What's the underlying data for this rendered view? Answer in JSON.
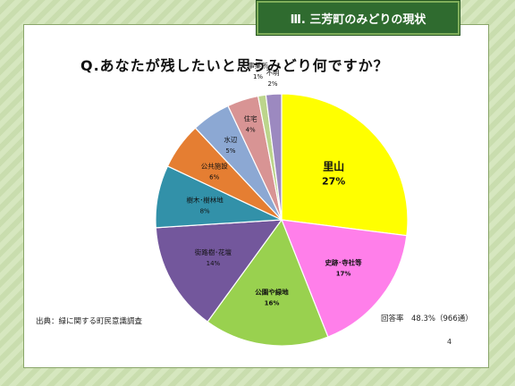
{
  "slide": {
    "section_title": "Ⅲ. 三芳町のみどりの現状",
    "source_note": "出典：緑に関する町民意識調査",
    "response_rate": "回答率　48.3%（966通）",
    "page_number": "4"
  },
  "chart_data": {
    "type": "pie",
    "title": "Q.あなたが残したいと思うみどり何ですか？",
    "slices": [
      {
        "label": "里山",
        "value": 27,
        "value_label": "27%",
        "color": "#ffff00"
      },
      {
        "label": "史跡･寺社等",
        "value": 17,
        "value_label": "17%",
        "color": "#ff7fea"
      },
      {
        "label": "公園や緑地",
        "value": 16,
        "value_label": "16%",
        "color": "#99d14f"
      },
      {
        "label": "街路樹･花壇",
        "value": 14,
        "value_label": "14%",
        "color": "#73579c"
      },
      {
        "label": "樹木･樹林地",
        "value": 8,
        "value_label": "8%",
        "color": "#3291a9"
      },
      {
        "label": "公共施設",
        "value": 6,
        "value_label": "6%",
        "color": "#e57e32"
      },
      {
        "label": "水辺",
        "value": 5,
        "value_label": "5%",
        "color": "#8ca8d3"
      },
      {
        "label": "住宅",
        "value": 4,
        "value_label": "4%",
        "color": "#d89494"
      },
      {
        "label": "事業所",
        "value": 1,
        "value_label": "1%",
        "color": "#bcd58c"
      },
      {
        "label": "不明",
        "value": 2,
        "value_label": "2%",
        "color": "#9c89c0"
      }
    ]
  }
}
